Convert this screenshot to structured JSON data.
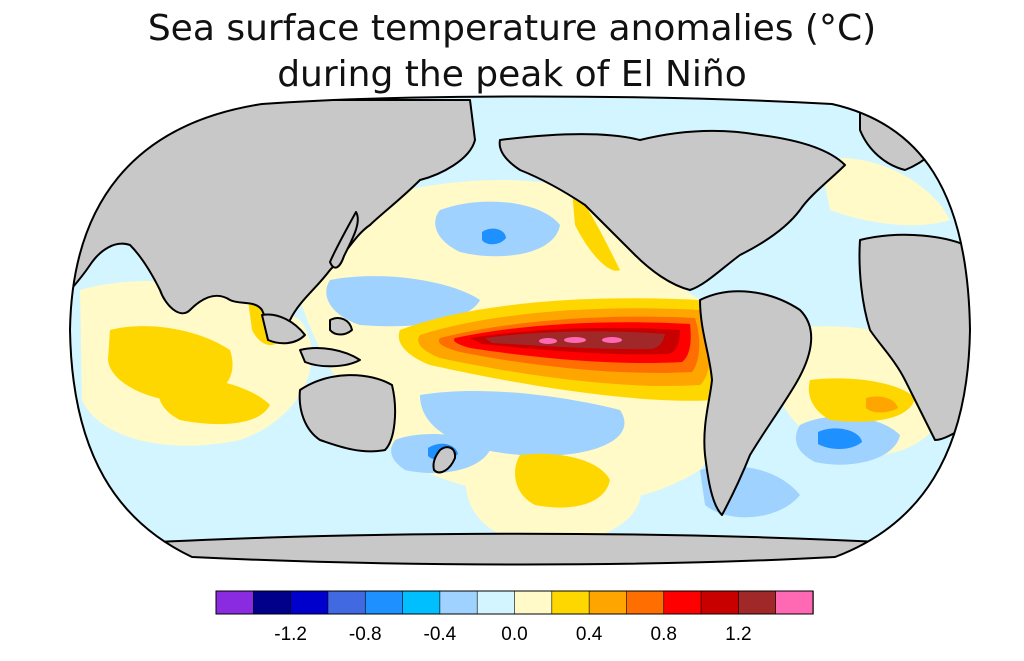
{
  "title": {
    "line1": "Sea surface temperature anomalies (°C)",
    "line2": "during the peak of El Niño"
  },
  "colorbar": {
    "colors": [
      "#8a2be2",
      "#00008b",
      "#0000cd",
      "#4169e1",
      "#1e90ff",
      "#00bfff",
      "#a0d2ff",
      "#d2f5ff",
      "#fffac8",
      "#ffd700",
      "#ffa500",
      "#ff6e00",
      "#ff0000",
      "#c80000",
      "#a02828",
      "#ff69b4"
    ],
    "ticks": [
      "-1.2",
      "-0.8",
      "-0.4",
      "0.0",
      "0.4",
      "0.8",
      "1.2"
    ]
  },
  "map": {
    "projection": "robinson",
    "land_color": "#c8c8c8",
    "ocean_base_color": "#d2f5ff"
  }
}
